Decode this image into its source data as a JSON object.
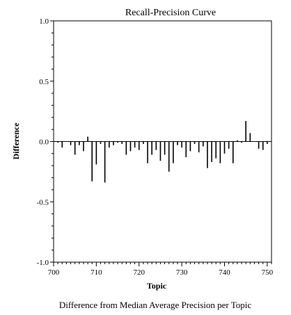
{
  "chart_data": {
    "type": "bar",
    "title": "Recall-Precision Curve",
    "xlabel": "Topic",
    "ylabel": "Difference",
    "caption": "Difference from Median Average Precision per Topic",
    "xlim": [
      700,
      751
    ],
    "ylim": [
      -1.0,
      1.0
    ],
    "x_ticks": [
      700,
      710,
      720,
      730,
      740,
      750
    ],
    "x_tick_labels": [
      "700",
      "710",
      "720",
      "730",
      "740",
      "750"
    ],
    "y_ticks": [
      -1.0,
      -0.5,
      0.0,
      0.5,
      1.0
    ],
    "y_tick_labels": [
      "-1.0",
      "-0.5",
      "0.0",
      "0.5",
      "1.0"
    ],
    "grid": false,
    "x": [
      701,
      702,
      703,
      704,
      705,
      706,
      707,
      708,
      709,
      710,
      711,
      712,
      713,
      714,
      715,
      716,
      717,
      718,
      719,
      720,
      721,
      722,
      723,
      724,
      725,
      726,
      727,
      728,
      729,
      730,
      731,
      732,
      733,
      734,
      735,
      736,
      737,
      738,
      739,
      740,
      741,
      742,
      743,
      744,
      745,
      746,
      747,
      748,
      749,
      750
    ],
    "values": [
      -0.01,
      -0.05,
      0.0,
      -0.03,
      -0.11,
      -0.03,
      -0.08,
      0.04,
      -0.33,
      -0.19,
      -0.02,
      -0.34,
      -0.05,
      -0.03,
      -0.01,
      -0.02,
      -0.11,
      -0.08,
      -0.05,
      -0.07,
      -0.02,
      -0.18,
      -0.11,
      -0.07,
      -0.16,
      -0.11,
      -0.25,
      -0.18,
      -0.03,
      -0.05,
      -0.13,
      -0.08,
      -0.02,
      -0.09,
      -0.04,
      -0.22,
      -0.17,
      -0.14,
      -0.18,
      -0.1,
      -0.06,
      -0.18,
      0.01,
      -0.01,
      0.17,
      0.07,
      0.0,
      -0.06,
      -0.07,
      -0.02
    ]
  }
}
